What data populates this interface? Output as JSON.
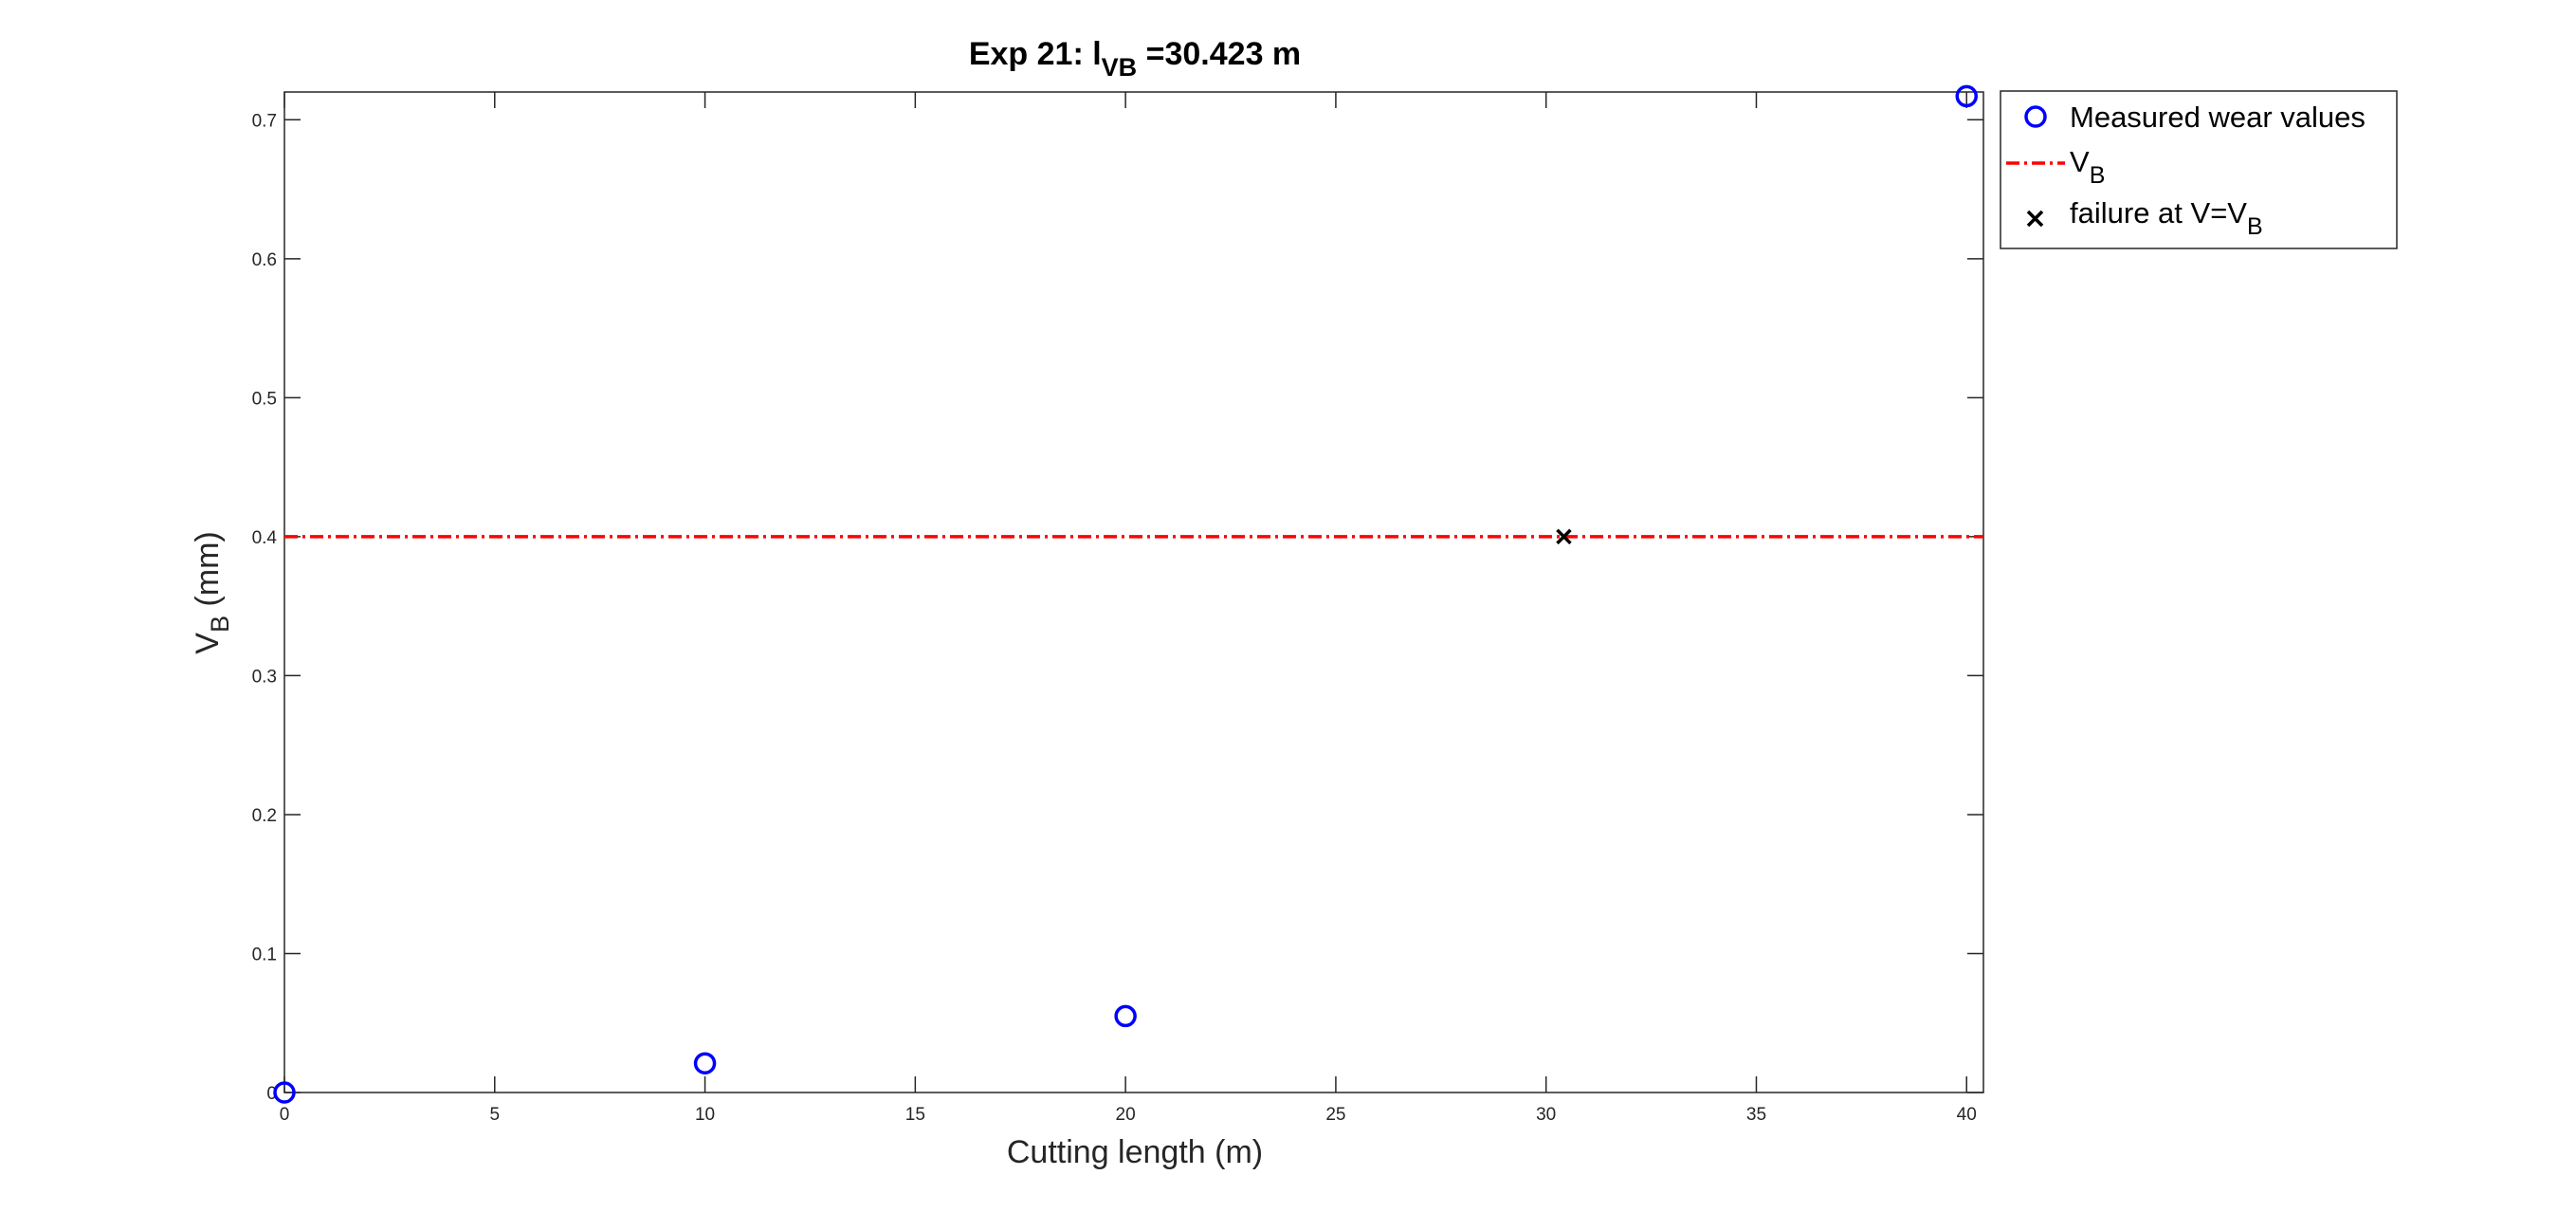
{
  "chart_data": {
    "type": "scatter",
    "title": {
      "prefix": "Exp 21: l",
      "subscript": "VB",
      "suffix": " =30.423 m"
    },
    "xlabel": "Cutting length (m)",
    "ylabel": {
      "main": "V",
      "subscript": "B",
      "suffix": " (mm)"
    },
    "xlim": [
      0,
      40.4
    ],
    "ylim": [
      0,
      0.72
    ],
    "xticks": [
      0,
      5,
      10,
      15,
      20,
      25,
      30,
      35,
      40
    ],
    "xtick_labels": [
      "0",
      "5",
      "10",
      "15",
      "20",
      "25",
      "30",
      "35",
      "40"
    ],
    "yticks": [
      0,
      0.1,
      0.2,
      0.3,
      0.4,
      0.5,
      0.6,
      0.7
    ],
    "ytick_labels": [
      "0",
      "0.1",
      "0.2",
      "0.3",
      "0.4",
      "0.5",
      "0.6",
      "0.7"
    ],
    "grid": false,
    "legend_placement": "outside-top-right",
    "series": [
      {
        "name": "Measured wear values",
        "kind": "scatter",
        "marker": "circle",
        "color": "#0000ff",
        "x": [
          0,
          10,
          20,
          40
        ],
        "y": [
          0,
          0.021,
          0.055,
          0.717
        ]
      },
      {
        "name_main": "V",
        "name_subscript": "B",
        "kind": "hline",
        "line_style": "dash-dot",
        "color": "#ff0000",
        "y": 0.4
      },
      {
        "name_main": "failure at V=V",
        "name_subscript": "B",
        "kind": "scatter",
        "marker": "x",
        "color": "#000000",
        "x": [
          30.423
        ],
        "y": [
          0.4
        ]
      }
    ]
  }
}
